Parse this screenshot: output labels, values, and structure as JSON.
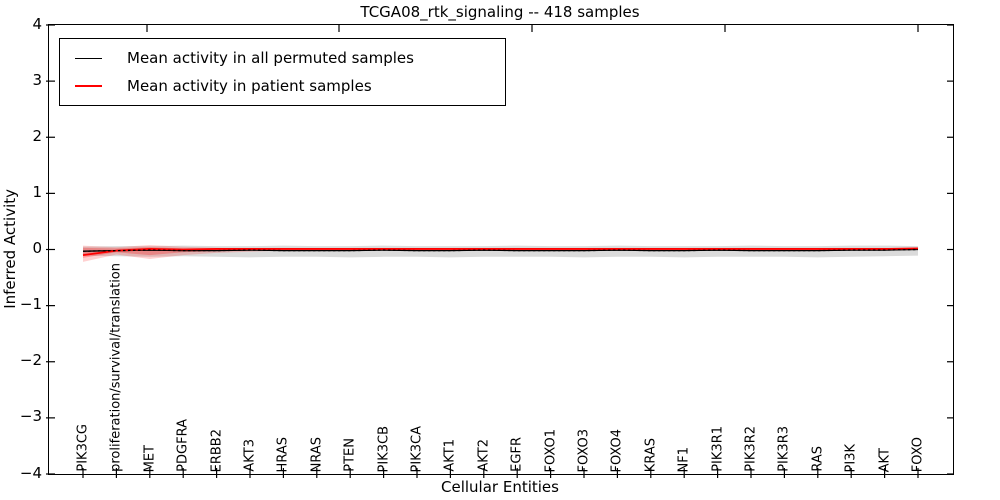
{
  "chart_data": {
    "type": "line",
    "title": "TCGA08_rtk_signaling -- 418 samples",
    "xlabel": "Cellular Entities",
    "ylabel": "Inferred Activity",
    "ylim": [
      -4,
      4
    ],
    "grid": false,
    "legend_position": "upper left",
    "y_tick_labels": [
      "4",
      "3",
      "2",
      "1",
      "0",
      "−1",
      "−2",
      "−3",
      "−4"
    ],
    "legend": [
      {
        "label": "Mean activity in all permuted samples",
        "color": "#000000"
      },
      {
        "label": "Mean activity in patient samples",
        "color": "#ff0000"
      }
    ],
    "categories": [
      "PIK3CG",
      "proliferation/survival/translation",
      "MET",
      "PDGFRA",
      "ERBB2",
      "AKT3",
      "HRAS",
      "NRAS",
      "PTEN",
      "PIK3CB",
      "PIK3CA",
      "AKT1",
      "AKT2",
      "EGFR",
      "FOXO1",
      "FOXO3",
      "FOXO4",
      "KRAS",
      "NF1",
      "PIK3R1",
      "PIK3R2",
      "PIK3R3",
      "RAS",
      "PI3K",
      "AKT",
      "FOXO"
    ],
    "series": [
      {
        "name": "Mean activity in all permuted samples",
        "color": "#000000",
        "width": 1.3,
        "values": [
          -0.03,
          -0.02,
          -0.01,
          -0.02,
          -0.02,
          -0.01,
          -0.02,
          -0.02,
          -0.02,
          -0.01,
          -0.02,
          -0.02,
          -0.01,
          -0.02,
          -0.02,
          -0.02,
          -0.01,
          -0.02,
          -0.02,
          -0.01,
          -0.02,
          -0.02,
          -0.02,
          -0.01,
          -0.01,
          0.0
        ]
      },
      {
        "name": "Mean activity in patient samples",
        "color": "#ff0000",
        "width": 1.8,
        "values": [
          -0.1,
          -0.02,
          0.01,
          0.0,
          0.01,
          0.01,
          0.01,
          0.01,
          0.01,
          0.01,
          0.01,
          0.01,
          0.01,
          0.01,
          0.01,
          0.01,
          0.01,
          0.01,
          0.01,
          0.01,
          0.01,
          0.01,
          0.01,
          0.01,
          0.01,
          0.02
        ]
      },
      {
        "name": "Mean activity in all permuted samples (dotted overlay)",
        "color": "#000000",
        "width": 1.3,
        "dash": "2.5,2.5",
        "values": [
          -0.03,
          -0.02,
          -0.01,
          -0.02,
          -0.02,
          -0.01,
          -0.02,
          -0.02,
          -0.02,
          -0.01,
          -0.02,
          -0.02,
          -0.01,
          -0.02,
          -0.02,
          -0.02,
          -0.01,
          -0.02,
          -0.02,
          -0.01,
          -0.02,
          -0.02,
          -0.02,
          -0.01,
          -0.01,
          0.0
        ]
      }
    ],
    "bands": [
      {
        "name": "permuted-samples-range",
        "color": "#999999",
        "opacity": 0.35,
        "upper": [
          0.05,
          0.06,
          0.06,
          0.07,
          0.06,
          0.06,
          0.07,
          0.06,
          0.06,
          0.07,
          0.06,
          0.06,
          0.06,
          0.07,
          0.06,
          0.06,
          0.07,
          0.06,
          0.06,
          0.06,
          0.07,
          0.06,
          0.06,
          0.07,
          0.07,
          0.06
        ],
        "lower": [
          -0.11,
          -0.12,
          -0.13,
          -0.12,
          -0.13,
          -0.14,
          -0.13,
          -0.13,
          -0.14,
          -0.13,
          -0.13,
          -0.14,
          -0.13,
          -0.13,
          -0.13,
          -0.14,
          -0.13,
          -0.13,
          -0.14,
          -0.13,
          -0.13,
          -0.13,
          -0.14,
          -0.13,
          -0.12,
          -0.11
        ]
      },
      {
        "name": "patient-samples-range-outer",
        "color": "#ff0000",
        "opacity": 0.18,
        "upper": [
          0.07,
          0.04,
          0.08,
          0.05,
          0.03,
          0.02,
          0.02,
          0.01,
          0.01,
          0.01,
          0.01,
          0.01,
          0.01,
          0.01,
          0.01,
          0.01,
          0.01,
          0.01,
          0.01,
          0.01,
          0.01,
          0.01,
          0.01,
          0.01,
          0.01,
          0.02
        ],
        "lower": [
          -0.22,
          -0.09,
          -0.17,
          -0.1,
          -0.06,
          -0.04,
          -0.02,
          -0.01,
          -0.01,
          -0.01,
          -0.01,
          -0.01,
          -0.01,
          -0.01,
          -0.01,
          -0.01,
          -0.01,
          -0.01,
          -0.01,
          -0.01,
          -0.01,
          -0.01,
          -0.01,
          -0.01,
          -0.01,
          0.0
        ]
      },
      {
        "name": "patient-samples-range-inner",
        "color": "#ff0000",
        "opacity": 0.25,
        "upper": [
          0.03,
          0.02,
          0.04,
          0.02,
          0.02,
          0.01,
          0.01,
          0.01,
          0.01,
          0.01,
          0.01,
          0.01,
          0.01,
          0.01,
          0.01,
          0.01,
          0.01,
          0.01,
          0.01,
          0.01,
          0.01,
          0.01,
          0.01,
          0.01,
          0.01,
          0.01
        ],
        "lower": [
          -0.15,
          -0.05,
          -0.1,
          -0.05,
          -0.03,
          -0.02,
          -0.01,
          -0.01,
          -0.01,
          -0.01,
          -0.01,
          -0.01,
          -0.01,
          -0.01,
          -0.01,
          -0.01,
          -0.01,
          -0.01,
          -0.01,
          -0.01,
          -0.01,
          -0.01,
          -0.01,
          -0.01,
          -0.01,
          0.0
        ]
      }
    ]
  }
}
